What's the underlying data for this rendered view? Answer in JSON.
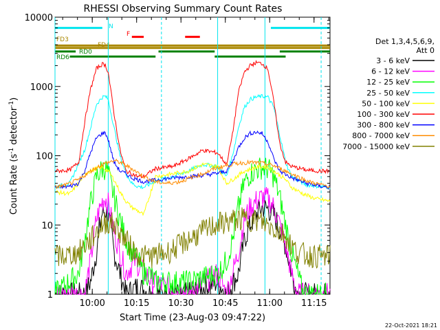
{
  "chart_data": {
    "type": "line",
    "title": "RHESSI Observing Summary Count Rates",
    "xlabel": "Start Time (23-Aug-03 09:47:22)",
    "ylabel_main": "Count Rate (s",
    "ylabel_exp1": "-1",
    "ylabel_mid": " detector",
    "ylabel_exp2": "-1",
    "ylabel_end": ")",
    "yscale": "log",
    "ylim": [
      1,
      10000
    ],
    "xlim_minutes_after_start": [
      0,
      93
    ],
    "x_ticks": [
      {
        "label": "10:00",
        "min": 12.6
      },
      {
        "label": "10:15",
        "min": 27.6
      },
      {
        "label": "10:30",
        "min": 42.6
      },
      {
        "label": "10:45",
        "min": 57.6
      },
      {
        "label": "11:00",
        "min": 72.6
      },
      {
        "label": "11:15",
        "min": 87.6
      }
    ],
    "y_ticks": [
      {
        "label": "1",
        "value": 1
      },
      {
        "label": "10",
        "value": 10
      },
      {
        "label": "100",
        "value": 100
      },
      {
        "label": "1000",
        "value": 1000
      },
      {
        "label": "10000",
        "value": 10000
      }
    ],
    "legend_title_1": "Det 1,3,4,5,6,9,",
    "legend_title_2": "Att 0",
    "series": [
      {
        "name": "3 - 6 keV",
        "color": "#000000",
        "values": [
          [
            0,
            1
          ],
          [
            5,
            1
          ],
          [
            10,
            1
          ],
          [
            12,
            1.5
          ],
          [
            14,
            4
          ],
          [
            15,
            9
          ],
          [
            16,
            15
          ],
          [
            17,
            16
          ],
          [
            18,
            14
          ],
          [
            19,
            8
          ],
          [
            20,
            4
          ],
          [
            22,
            2
          ],
          [
            24,
            1
          ],
          [
            28,
            1.3
          ],
          [
            33,
            1
          ],
          [
            45,
            1
          ],
          [
            55,
            1.5
          ],
          [
            58,
            1
          ],
          [
            62,
            2
          ],
          [
            64,
            6
          ],
          [
            66,
            10
          ],
          [
            68,
            14
          ],
          [
            70,
            18
          ],
          [
            72,
            17
          ],
          [
            74,
            14
          ],
          [
            76,
            9
          ],
          [
            78,
            5
          ],
          [
            80,
            2
          ],
          [
            82,
            1
          ],
          [
            93,
            1
          ]
        ]
      },
      {
        "name": "6 - 12 keV",
        "color": "#ff00ff",
        "values": [
          [
            0,
            1
          ],
          [
            10,
            1
          ],
          [
            12,
            3
          ],
          [
            14,
            12
          ],
          [
            16,
            22
          ],
          [
            17,
            25
          ],
          [
            18,
            20
          ],
          [
            20,
            8
          ],
          [
            22,
            4
          ],
          [
            24,
            2
          ],
          [
            27,
            3
          ],
          [
            33,
            1.5
          ],
          [
            45,
            1
          ],
          [
            55,
            2
          ],
          [
            58,
            1
          ],
          [
            62,
            4
          ],
          [
            64,
            12
          ],
          [
            66,
            18
          ],
          [
            68,
            22
          ],
          [
            70,
            25
          ],
          [
            72,
            24
          ],
          [
            74,
            18
          ],
          [
            76,
            10
          ],
          [
            78,
            5
          ],
          [
            80,
            2
          ],
          [
            82,
            1
          ],
          [
            93,
            1
          ]
        ]
      },
      {
        "name": "12 - 25 keV",
        "color": "#00ff00",
        "values": [
          [
            0,
            1
          ],
          [
            8,
            2
          ],
          [
            10,
            6
          ],
          [
            12,
            20
          ],
          [
            14,
            50
          ],
          [
            16,
            65
          ],
          [
            17,
            66
          ],
          [
            18,
            55
          ],
          [
            20,
            25
          ],
          [
            22,
            12
          ],
          [
            24,
            6
          ],
          [
            26,
            4
          ],
          [
            28,
            3
          ],
          [
            30,
            2
          ],
          [
            32,
            2
          ],
          [
            34,
            1.5
          ],
          [
            45,
            1.5
          ],
          [
            55,
            2
          ],
          [
            58,
            3
          ],
          [
            60,
            6
          ],
          [
            62,
            18
          ],
          [
            64,
            40
          ],
          [
            66,
            55
          ],
          [
            68,
            63
          ],
          [
            70,
            68
          ],
          [
            72,
            65
          ],
          [
            74,
            50
          ],
          [
            76,
            25
          ],
          [
            78,
            10
          ],
          [
            80,
            4
          ],
          [
            82,
            2
          ],
          [
            84,
            1
          ],
          [
            93,
            1
          ]
        ]
      },
      {
        "name": "25 - 50 keV",
        "color": "#00ffff",
        "values": [
          [
            0,
            35
          ],
          [
            5,
            40
          ],
          [
            10,
            120
          ],
          [
            12,
            250
          ],
          [
            14,
            550
          ],
          [
            16,
            700
          ],
          [
            17,
            720
          ],
          [
            18,
            650
          ],
          [
            20,
            250
          ],
          [
            22,
            100
          ],
          [
            24,
            55
          ],
          [
            26,
            40
          ],
          [
            28,
            36
          ],
          [
            30,
            35
          ],
          [
            35,
            45
          ],
          [
            40,
            50
          ],
          [
            45,
            60
          ],
          [
            50,
            75
          ],
          [
            55,
            70
          ],
          [
            58,
            50
          ],
          [
            60,
            100
          ],
          [
            62,
            250
          ],
          [
            64,
            500
          ],
          [
            66,
            650
          ],
          [
            68,
            700
          ],
          [
            70,
            720
          ],
          [
            72,
            700
          ],
          [
            74,
            500
          ],
          [
            76,
            200
          ],
          [
            78,
            80
          ],
          [
            80,
            50
          ],
          [
            85,
            38
          ],
          [
            90,
            36
          ],
          [
            93,
            35
          ]
        ]
      },
      {
        "name": "50 - 100 keV",
        "color": "#ffff00",
        "values": [
          [
            0,
            30
          ],
          [
            5,
            28
          ],
          [
            8,
            40
          ],
          [
            10,
            55
          ],
          [
            12,
            60
          ],
          [
            14,
            65
          ],
          [
            16,
            68
          ],
          [
            18,
            60
          ],
          [
            20,
            45
          ],
          [
            22,
            30
          ],
          [
            24,
            22
          ],
          [
            26,
            18
          ],
          [
            28,
            16
          ],
          [
            30,
            14
          ],
          [
            34,
            50
          ],
          [
            40,
            55
          ],
          [
            45,
            60
          ],
          [
            50,
            75
          ],
          [
            55,
            70
          ],
          [
            58,
            40
          ],
          [
            60,
            45
          ],
          [
            64,
            60
          ],
          [
            68,
            68
          ],
          [
            70,
            70
          ],
          [
            72,
            68
          ],
          [
            74,
            60
          ],
          [
            78,
            45
          ],
          [
            80,
            35
          ],
          [
            84,
            28
          ],
          [
            88,
            24
          ],
          [
            93,
            22
          ]
        ]
      },
      {
        "name": "100 - 300 keV",
        "color": "#ff0000",
        "values": [
          [
            0,
            60
          ],
          [
            5,
            62
          ],
          [
            8,
            80
          ],
          [
            10,
            300
          ],
          [
            12,
            900
          ],
          [
            14,
            1800
          ],
          [
            16,
            2100
          ],
          [
            17,
            2050
          ],
          [
            18,
            1600
          ],
          [
            20,
            400
          ],
          [
            22,
            120
          ],
          [
            24,
            60
          ],
          [
            26,
            55
          ],
          [
            28,
            50
          ],
          [
            30,
            50
          ],
          [
            34,
            65
          ],
          [
            40,
            70
          ],
          [
            45,
            90
          ],
          [
            50,
            120
          ],
          [
            55,
            110
          ],
          [
            58,
            75
          ],
          [
            60,
            200
          ],
          [
            62,
            800
          ],
          [
            64,
            1600
          ],
          [
            66,
            2000
          ],
          [
            68,
            2200
          ],
          [
            70,
            2150
          ],
          [
            72,
            1800
          ],
          [
            74,
            600
          ],
          [
            76,
            150
          ],
          [
            78,
            80
          ],
          [
            80,
            70
          ],
          [
            85,
            62
          ],
          [
            90,
            60
          ],
          [
            93,
            60
          ]
        ]
      },
      {
        "name": "300 - 800 keV",
        "color": "#0000ff",
        "values": [
          [
            0,
            35
          ],
          [
            5,
            36
          ],
          [
            8,
            40
          ],
          [
            10,
            60
          ],
          [
            12,
            110
          ],
          [
            14,
            180
          ],
          [
            16,
            210
          ],
          [
            17,
            215
          ],
          [
            18,
            170
          ],
          [
            20,
            80
          ],
          [
            22,
            60
          ],
          [
            24,
            55
          ],
          [
            26,
            48
          ],
          [
            28,
            45
          ],
          [
            30,
            42
          ],
          [
            35,
            45
          ],
          [
            40,
            48
          ],
          [
            45,
            50
          ],
          [
            50,
            52
          ],
          [
            55,
            56
          ],
          [
            58,
            60
          ],
          [
            60,
            80
          ],
          [
            62,
            130
          ],
          [
            64,
            180
          ],
          [
            66,
            210
          ],
          [
            68,
            220
          ],
          [
            70,
            210
          ],
          [
            72,
            160
          ],
          [
            74,
            90
          ],
          [
            76,
            60
          ],
          [
            80,
            48
          ],
          [
            85,
            40
          ],
          [
            90,
            36
          ],
          [
            93,
            35
          ]
        ]
      },
      {
        "name": "800 - 7000 keV",
        "color": "#ff8c00",
        "values": [
          [
            0,
            35
          ],
          [
            4,
            38
          ],
          [
            8,
            45
          ],
          [
            12,
            60
          ],
          [
            16,
            75
          ],
          [
            20,
            85
          ],
          [
            22,
            80
          ],
          [
            26,
            65
          ],
          [
            30,
            50
          ],
          [
            34,
            42
          ],
          [
            38,
            40
          ],
          [
            42,
            42
          ],
          [
            46,
            48
          ],
          [
            50,
            55
          ],
          [
            54,
            65
          ],
          [
            58,
            72
          ],
          [
            62,
            78
          ],
          [
            66,
            80
          ],
          [
            70,
            78
          ],
          [
            74,
            72
          ],
          [
            78,
            60
          ],
          [
            82,
            50
          ],
          [
            86,
            42
          ],
          [
            90,
            38
          ],
          [
            93,
            36
          ]
        ]
      },
      {
        "name": "7000 - 15000 keV",
        "color": "#808000",
        "values": [
          [
            0,
            3.5
          ],
          [
            4,
            3.6
          ],
          [
            8,
            4
          ],
          [
            10,
            5
          ],
          [
            12,
            6
          ],
          [
            14,
            8
          ],
          [
            16,
            10
          ],
          [
            18,
            11
          ],
          [
            20,
            10
          ],
          [
            22,
            8
          ],
          [
            24,
            6
          ],
          [
            26,
            4.5
          ],
          [
            28,
            3.8
          ],
          [
            30,
            3.5
          ],
          [
            34,
            3.6
          ],
          [
            38,
            4
          ],
          [
            42,
            5
          ],
          [
            46,
            6.5
          ],
          [
            50,
            8
          ],
          [
            54,
            10
          ],
          [
            58,
            11
          ],
          [
            62,
            12
          ],
          [
            66,
            12
          ],
          [
            70,
            11
          ],
          [
            74,
            9
          ],
          [
            78,
            7
          ],
          [
            80,
            5
          ],
          [
            82,
            4
          ],
          [
            86,
            3.6
          ],
          [
            90,
            3.5
          ],
          [
            93,
            3.5
          ]
        ]
      }
    ],
    "flag_bars": [
      {
        "label": "N",
        "color": "#00e5ee",
        "level": 7000,
        "segments": [
          [
            0,
            16
          ],
          [
            73,
            93
          ]
        ]
      },
      {
        "label": "F",
        "color": "#ff0000",
        "level": 5200,
        "segments": [
          [
            26,
            30
          ],
          [
            44,
            49
          ]
        ]
      },
      {
        "label": "FD3",
        "color": "#aa8800",
        "level": 3900,
        "segments": [
          [
            0,
            93
          ]
        ]
      },
      {
        "label": "FD4",
        "color": "#aa8800",
        "level": 3600,
        "segments": [
          [
            0,
            93
          ]
        ]
      },
      {
        "label": "RD0",
        "color": "#008000",
        "level": 3200,
        "segments": [
          [
            0,
            7
          ],
          [
            35,
            54
          ],
          [
            76,
            93
          ]
        ]
      },
      {
        "label": "RD6",
        "color": "#008000",
        "level": 2700,
        "segments": [
          [
            5,
            34
          ],
          [
            54,
            78
          ]
        ]
      }
    ],
    "vertical_markers": [
      {
        "min": 0,
        "color": "#00e5ee",
        "style": "solid"
      },
      {
        "min": 18,
        "color": "#00e5ee",
        "style": "solid"
      },
      {
        "min": 36,
        "color": "#00e5ee",
        "style": "dashed"
      },
      {
        "min": 55,
        "color": "#00e5ee",
        "style": "solid"
      },
      {
        "min": 71,
        "color": "#00e5ee",
        "style": "solid"
      },
      {
        "min": 90,
        "color": "#00e5ee",
        "style": "dashed"
      }
    ],
    "grid": false,
    "legend": "right"
  },
  "footer": {
    "timestamp": "22-Oct-2021 18:21"
  }
}
